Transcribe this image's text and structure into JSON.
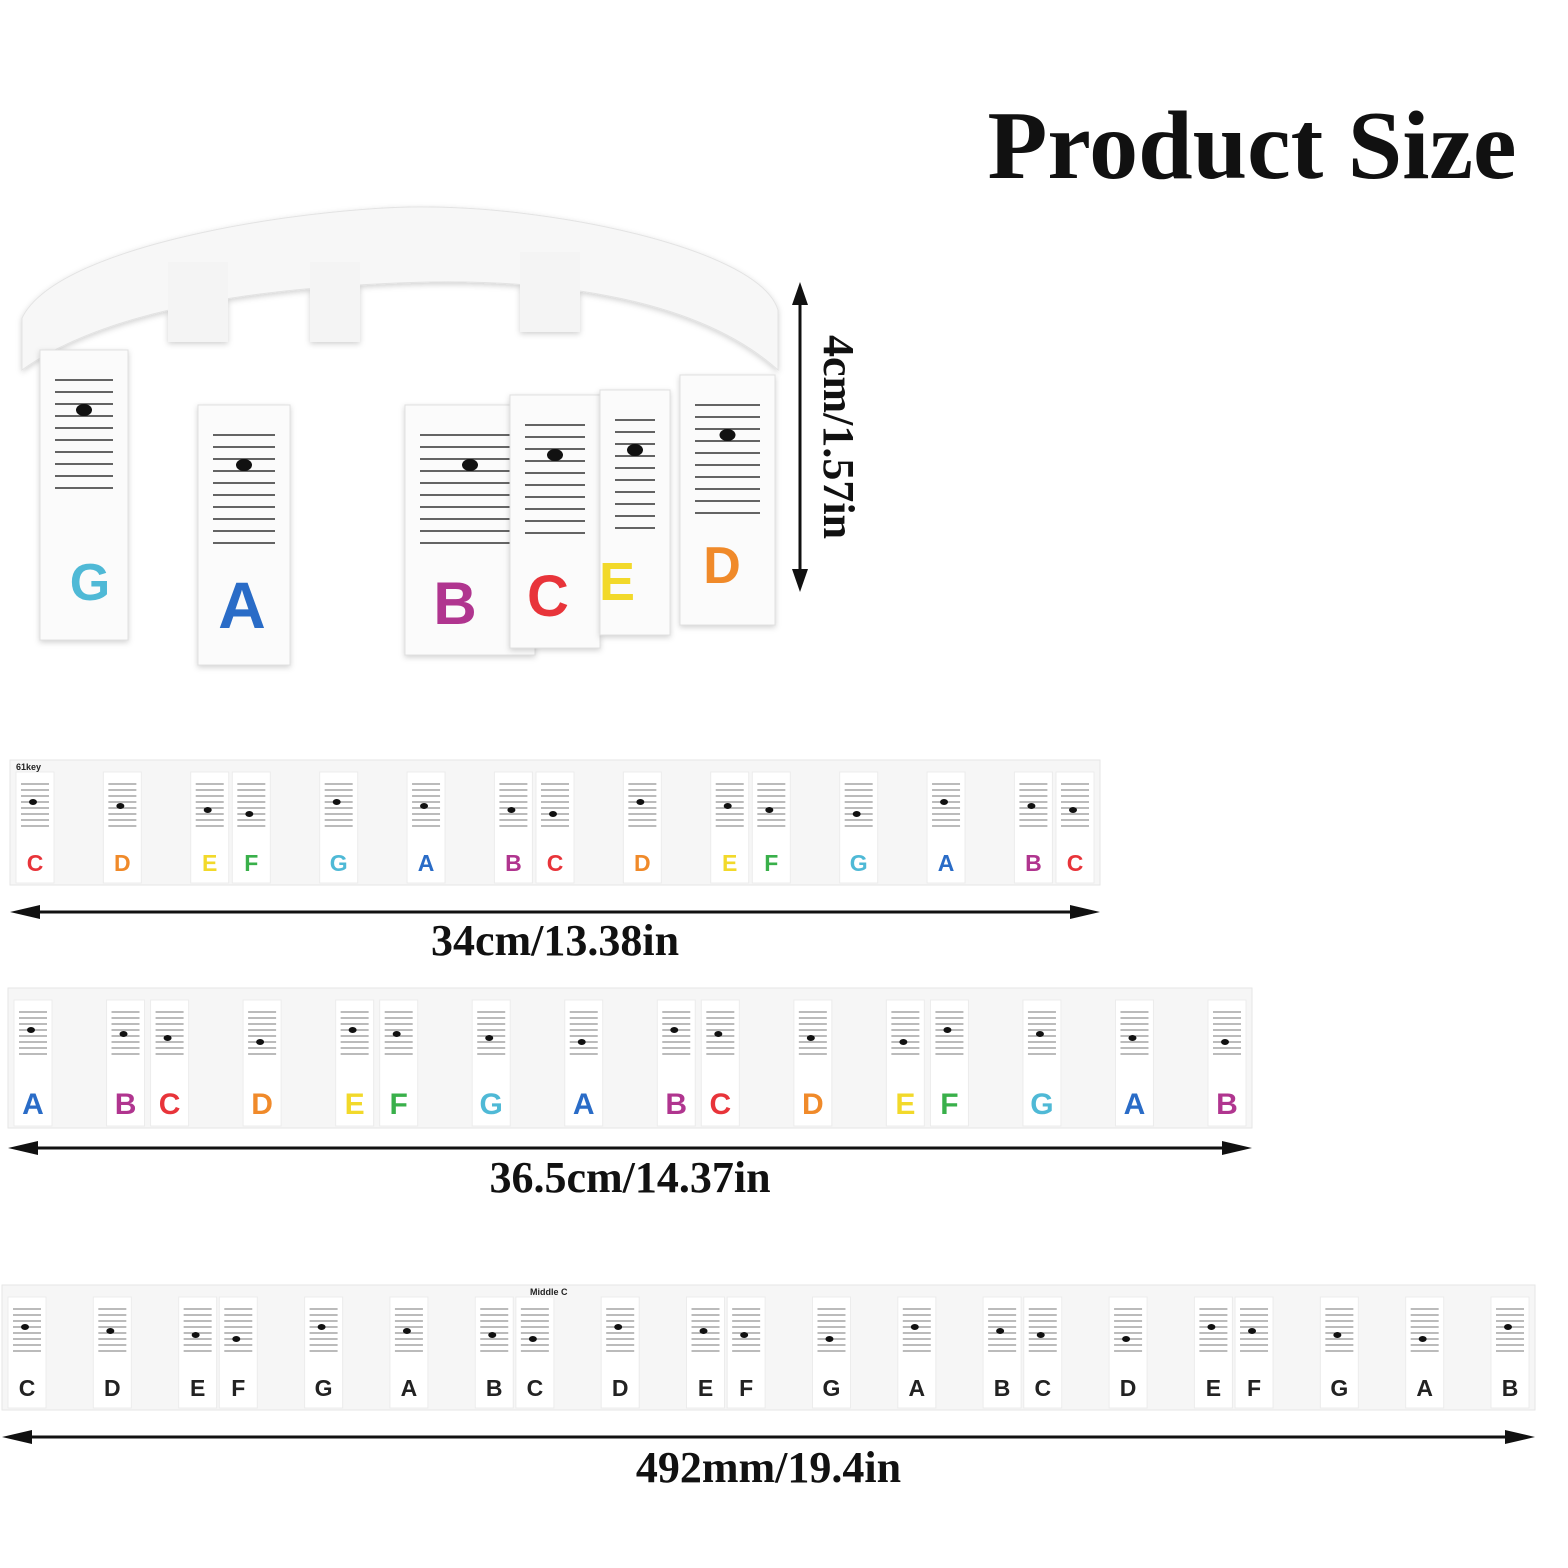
{
  "header": {
    "title": "Product Size"
  },
  "note_colors": {
    "C": "#e8343a",
    "D": "#f08a2a",
    "E": "#f2d92a",
    "F": "#39b04a",
    "G": "#4fb9d6",
    "A": "#2a6cc7",
    "B": "#b0358f"
  },
  "band": {
    "height_label": "4cm/1.57in",
    "keys": [
      "G",
      "A",
      "B",
      "C",
      "E",
      "D"
    ]
  },
  "strips": [
    {
      "caption": "61key",
      "keys": [
        "C",
        "D",
        "E",
        "F",
        "G",
        "A",
        "B",
        "C",
        "D",
        "E",
        "F",
        "G",
        "A",
        "B",
        "C"
      ],
      "length_label": "34cm/13.38in",
      "colored": true
    },
    {
      "keys": [
        "A",
        "B",
        "C",
        "D",
        "E",
        "F",
        "G",
        "A",
        "B",
        "C",
        "D",
        "E",
        "F",
        "G",
        "A",
        "B"
      ],
      "length_label": "36.5cm/14.37in",
      "colored": true
    },
    {
      "caption": "Middle C",
      "keys": [
        "C",
        "D",
        "E",
        "F",
        "G",
        "A",
        "B",
        "C",
        "D",
        "E",
        "F",
        "G",
        "A",
        "B",
        "C",
        "D",
        "E",
        "F",
        "G",
        "A",
        "B"
      ],
      "length_label": "492mm/19.4in",
      "colored": false
    }
  ]
}
